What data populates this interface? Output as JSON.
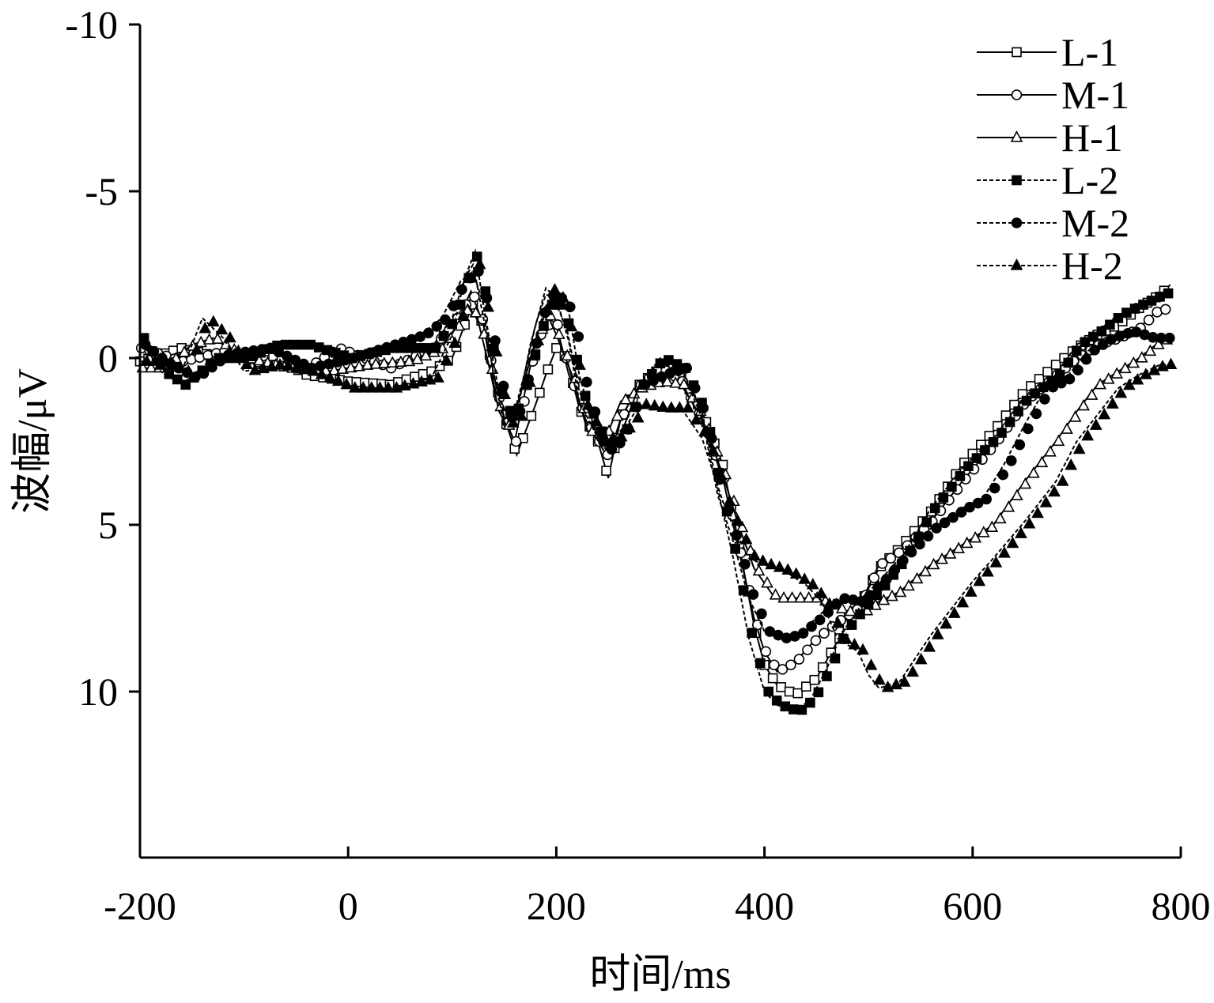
{
  "chart_data": {
    "type": "line",
    "title": "",
    "xlabel": "时间/ms",
    "ylabel": "波幅/μV",
    "xlim": [
      -200,
      800
    ],
    "ylim": [
      -10,
      15
    ],
    "y_inverted": true,
    "grid": false,
    "legend_position": "top-right",
    "x_ticks": [
      -200,
      0,
      200,
      400,
      600,
      800
    ],
    "y_ticks": [
      -10,
      -5,
      0,
      5,
      10
    ],
    "x_tick_labels": [
      "-200",
      "0",
      "200",
      "400",
      "600",
      "800"
    ],
    "y_tick_labels": [
      "-10",
      "-5",
      "0",
      "5",
      "10"
    ],
    "series": [
      {
        "name": "L-1",
        "marker": "square",
        "filled": false,
        "line": "solid",
        "points": [
          [
            -200,
            0.1
          ],
          [
            -160,
            -0.3
          ],
          [
            -120,
            0
          ],
          [
            -80,
            -0.2
          ],
          [
            -40,
            0.5
          ],
          [
            0,
            0.7
          ],
          [
            40,
            0.8
          ],
          [
            80,
            0.4
          ],
          [
            100,
            0
          ],
          [
            112,
            -1
          ],
          [
            120,
            -1.6
          ],
          [
            130,
            -1
          ],
          [
            140,
            0.5
          ],
          [
            150,
            1.8
          ],
          [
            162,
            2.9
          ],
          [
            180,
            1.4
          ],
          [
            190,
            0.5
          ],
          [
            200,
            -0.3
          ],
          [
            210,
            0
          ],
          [
            222,
            1.5
          ],
          [
            240,
            2.5
          ],
          [
            250,
            3.6
          ],
          [
            262,
            1.8
          ],
          [
            280,
            0.8
          ],
          [
            300,
            0.3
          ],
          [
            320,
            0.5
          ],
          [
            340,
            1.6
          ],
          [
            360,
            3.2
          ],
          [
            375,
            5.5
          ],
          [
            390,
            8
          ],
          [
            400,
            9.2
          ],
          [
            412,
            9.8
          ],
          [
            430,
            10.1
          ],
          [
            450,
            9.6
          ],
          [
            470,
            8.5
          ],
          [
            490,
            7.5
          ],
          [
            510,
            6.3
          ],
          [
            530,
            5.7
          ],
          [
            560,
            4.6
          ],
          [
            590,
            3.2
          ],
          [
            620,
            2.2
          ],
          [
            650,
            1
          ],
          [
            680,
            0.2
          ],
          [
            700,
            -0.3
          ],
          [
            720,
            -0.7
          ],
          [
            740,
            -1
          ],
          [
            760,
            -1.5
          ],
          [
            780,
            -1.9
          ],
          [
            790,
            -2.2
          ]
        ]
      },
      {
        "name": "M-1",
        "marker": "circle",
        "filled": false,
        "line": "solid",
        "points": [
          [
            -200,
            -0.3
          ],
          [
            -160,
            0.1
          ],
          [
            -120,
            -0.2
          ],
          [
            -80,
            0.2
          ],
          [
            -40,
            0.3
          ],
          [
            -10,
            -0.3
          ],
          [
            40,
            0.3
          ],
          [
            80,
            -0.3
          ],
          [
            100,
            -1
          ],
          [
            112,
            -1.6
          ],
          [
            118,
            -2
          ],
          [
            130,
            -1
          ],
          [
            140,
            0.8
          ],
          [
            150,
            1.8
          ],
          [
            160,
            2.5
          ],
          [
            170,
            1
          ],
          [
            180,
            -0.5
          ],
          [
            190,
            -1
          ],
          [
            200,
            -1
          ],
          [
            212,
            0.5
          ],
          [
            230,
            2
          ],
          [
            250,
            3
          ],
          [
            262,
            1.8
          ],
          [
            280,
            0.8
          ],
          [
            300,
            0.3
          ],
          [
            320,
            0.7
          ],
          [
            340,
            1.9
          ],
          [
            360,
            3.6
          ],
          [
            375,
            5.7
          ],
          [
            390,
            7.8
          ],
          [
            400,
            8.8
          ],
          [
            412,
            9.4
          ],
          [
            430,
            9.1
          ],
          [
            450,
            8.4
          ],
          [
            470,
            7.9
          ],
          [
            490,
            7.5
          ],
          [
            510,
            6.2
          ],
          [
            530,
            5.8
          ],
          [
            560,
            4.9
          ],
          [
            590,
            3.7
          ],
          [
            620,
            2.6
          ],
          [
            650,
            1.3
          ],
          [
            680,
            0.5
          ],
          [
            700,
            0
          ],
          [
            720,
            -0.4
          ],
          [
            740,
            -0.6
          ],
          [
            760,
            -0.9
          ],
          [
            780,
            -1.5
          ],
          [
            790,
            -1.4
          ]
        ]
      },
      {
        "name": "H-1",
        "marker": "triangle",
        "filled": false,
        "line": "solid",
        "points": [
          [
            -200,
            0.3
          ],
          [
            -180,
            0.3
          ],
          [
            -150,
            -0.4
          ],
          [
            -130,
            -0.6
          ],
          [
            -100,
            0
          ],
          [
            -60,
            0.3
          ],
          [
            -20,
            0.4
          ],
          [
            20,
            0.2
          ],
          [
            60,
            0.1
          ],
          [
            90,
            -0.3
          ],
          [
            105,
            -1
          ],
          [
            115,
            -1.6
          ],
          [
            125,
            -1.1
          ],
          [
            135,
            0.2
          ],
          [
            145,
            1.6
          ],
          [
            155,
            2.2
          ],
          [
            170,
            0.6
          ],
          [
            180,
            -0.5
          ],
          [
            190,
            -1.4
          ],
          [
            200,
            -0.7
          ],
          [
            215,
            0.5
          ],
          [
            230,
            2.2
          ],
          [
            250,
            2.2
          ],
          [
            262,
            1.3
          ],
          [
            280,
            0.9
          ],
          [
            300,
            0.7
          ],
          [
            320,
            0.8
          ],
          [
            340,
            1.8
          ],
          [
            360,
            3.5
          ],
          [
            375,
            5
          ],
          [
            390,
            6.3
          ],
          [
            410,
            7.2
          ],
          [
            430,
            7.2
          ],
          [
            450,
            7.2
          ],
          [
            470,
            7.5
          ],
          [
            490,
            7.7
          ],
          [
            510,
            7.3
          ],
          [
            530,
            7
          ],
          [
            560,
            6.2
          ],
          [
            590,
            5.6
          ],
          [
            620,
            5
          ],
          [
            650,
            3.7
          ],
          [
            680,
            2.5
          ],
          [
            700,
            1.6
          ],
          [
            720,
            0.8
          ],
          [
            740,
            0.4
          ],
          [
            760,
            0
          ],
          [
            780,
            -0.5
          ],
          [
            790,
            -0.6
          ]
        ]
      },
      {
        "name": "L-2",
        "marker": "square",
        "filled": true,
        "line": "dashed",
        "points": [
          [
            -200,
            -0.6
          ],
          [
            -180,
            0.4
          ],
          [
            -160,
            0.8
          ],
          [
            -130,
            0
          ],
          [
            -100,
            0
          ],
          [
            -70,
            -0.4
          ],
          [
            -40,
            -0.4
          ],
          [
            0,
            0
          ],
          [
            40,
            -0.3
          ],
          [
            80,
            -0.3
          ],
          [
            100,
            -1.2
          ],
          [
            112,
            -2.4
          ],
          [
            122,
            -3.2
          ],
          [
            130,
            -1.6
          ],
          [
            140,
            0.6
          ],
          [
            150,
            1.6
          ],
          [
            162,
            1.5
          ],
          [
            175,
            0
          ],
          [
            190,
            -1.6
          ],
          [
            200,
            -1.6
          ],
          [
            210,
            -0.9
          ],
          [
            222,
            1
          ],
          [
            240,
            2.2
          ],
          [
            250,
            2.7
          ],
          [
            262,
            2.3
          ],
          [
            280,
            0.8
          ],
          [
            300,
            0
          ],
          [
            320,
            0.3
          ],
          [
            340,
            1.6
          ],
          [
            355,
            3.9
          ],
          [
            370,
            6
          ],
          [
            385,
            8.4
          ],
          [
            400,
            10
          ],
          [
            412,
            10.4
          ],
          [
            430,
            10.6
          ],
          [
            445,
            10.2
          ],
          [
            460,
            9.3
          ],
          [
            475,
            8.2
          ],
          [
            490,
            7.6
          ],
          [
            510,
            6.9
          ],
          [
            530,
            6.1
          ],
          [
            560,
            4.5
          ],
          [
            590,
            3.3
          ],
          [
            620,
            2.4
          ],
          [
            650,
            1.2
          ],
          [
            680,
            0.5
          ],
          [
            700,
            -0.4
          ],
          [
            720,
            -0.8
          ],
          [
            740,
            -1.3
          ],
          [
            760,
            -1.6
          ],
          [
            780,
            -1.9
          ],
          [
            790,
            -2
          ]
        ]
      },
      {
        "name": "M-2",
        "marker": "circle",
        "filled": true,
        "line": "dashed",
        "points": [
          [
            -200,
            -0.4
          ],
          [
            -180,
            0.1
          ],
          [
            -150,
            0.6
          ],
          [
            -120,
            -0.1
          ],
          [
            -80,
            -0.3
          ],
          [
            -40,
            0.3
          ],
          [
            0,
            0
          ],
          [
            40,
            -0.4
          ],
          [
            70,
            -0.7
          ],
          [
            90,
            -1.2
          ],
          [
            108,
            -2.3
          ],
          [
            120,
            -2.6
          ],
          [
            130,
            -1.6
          ],
          [
            140,
            0.2
          ],
          [
            150,
            1.8
          ],
          [
            160,
            1.6
          ],
          [
            170,
            0.4
          ],
          [
            180,
            -1
          ],
          [
            190,
            -1.9
          ],
          [
            200,
            -1.8
          ],
          [
            212,
            -1.4
          ],
          [
            222,
            0.5
          ],
          [
            240,
            2.5
          ],
          [
            250,
            2.8
          ],
          [
            262,
            2.3
          ],
          [
            280,
            0.8
          ],
          [
            300,
            0.5
          ],
          [
            320,
            0.3
          ],
          [
            340,
            1.8
          ],
          [
            355,
            4.1
          ],
          [
            370,
            5.5
          ],
          [
            385,
            7.2
          ],
          [
            400,
            8.2
          ],
          [
            415,
            8.4
          ],
          [
            430,
            8.3
          ],
          [
            450,
            7.8
          ],
          [
            470,
            7.2
          ],
          [
            490,
            7.3
          ],
          [
            510,
            6.7
          ],
          [
            530,
            6
          ],
          [
            560,
            5.1
          ],
          [
            590,
            4.5
          ],
          [
            610,
            4.2
          ],
          [
            630,
            3.2
          ],
          [
            650,
            2
          ],
          [
            670,
            0.9
          ],
          [
            690,
            0.6
          ],
          [
            710,
            -0.2
          ],
          [
            730,
            -0.6
          ],
          [
            750,
            -0.8
          ],
          [
            770,
            -0.6
          ],
          [
            790,
            -0.6
          ]
        ]
      },
      {
        "name": "H-2",
        "marker": "triangle",
        "filled": true,
        "line": "dashed",
        "points": [
          [
            -200,
            0.1
          ],
          [
            -180,
            0.1
          ],
          [
            -160,
            0.4
          ],
          [
            -140,
            -1.2
          ],
          [
            -120,
            -0.6
          ],
          [
            -100,
            0.4
          ],
          [
            -70,
            0.2
          ],
          [
            -40,
            0.4
          ],
          [
            0,
            0.9
          ],
          [
            40,
            0.9
          ],
          [
            80,
            0.6
          ],
          [
            100,
            -0.7
          ],
          [
            112,
            -2.4
          ],
          [
            120,
            -2.8
          ],
          [
            130,
            -1.2
          ],
          [
            140,
            0.5
          ],
          [
            150,
            2
          ],
          [
            162,
            1.7
          ],
          [
            175,
            -0.4
          ],
          [
            190,
            -2.1
          ],
          [
            200,
            -1.8
          ],
          [
            212,
            -0.5
          ],
          [
            222,
            1.3
          ],
          [
            240,
            2.4
          ],
          [
            255,
            2.4
          ],
          [
            270,
            1.9
          ],
          [
            280,
            1.4
          ],
          [
            300,
            1.5
          ],
          [
            320,
            1.5
          ],
          [
            340,
            2.4
          ],
          [
            360,
            4.3
          ],
          [
            372,
            5.2
          ],
          [
            385,
            6
          ],
          [
            400,
            6.2
          ],
          [
            420,
            6.4
          ],
          [
            440,
            6.8
          ],
          [
            455,
            7.3
          ],
          [
            470,
            8.4
          ],
          [
            490,
            8.8
          ],
          [
            500,
            9.5
          ],
          [
            510,
            9.9
          ],
          [
            530,
            9.7
          ],
          [
            545,
            9
          ],
          [
            560,
            8.3
          ],
          [
            580,
            7.5
          ],
          [
            600,
            6.7
          ],
          [
            620,
            6
          ],
          [
            650,
            4.9
          ],
          [
            680,
            3.7
          ],
          [
            700,
            2.5
          ],
          [
            720,
            1.7
          ],
          [
            740,
            0.9
          ],
          [
            760,
            0.5
          ],
          [
            780,
            0.2
          ],
          [
            790,
            0.2
          ]
        ]
      }
    ]
  }
}
